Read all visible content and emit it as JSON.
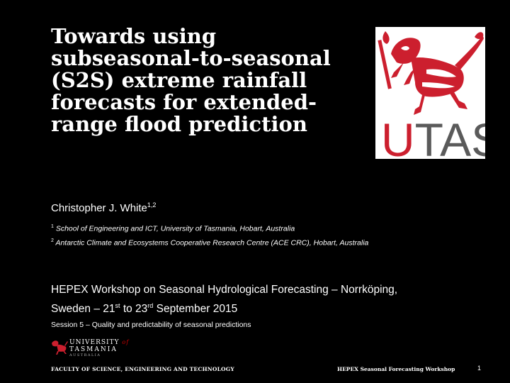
{
  "title_lines": [
    "Towards using",
    "subseasonal-to-seasonal",
    "(S2S) extreme rainfall",
    "forecasts for extended-",
    "range flood prediction"
  ],
  "logo": {
    "text": "UTAS",
    "u_color": "#cc1f2e",
    "tas_color": "#5a5a5a",
    "lion_color": "#cc1f2e"
  },
  "author": {
    "name": "Christopher J. White",
    "sup": "1,2"
  },
  "affiliations": [
    {
      "sup": "1",
      "text": "School of Engineering and ICT, University of Tasmania, Hobart, Australia"
    },
    {
      "sup": "2",
      "text": "Antarctic Climate and Ecosystems Cooperative Research Centre (ACE CRC), Hobart, Australia"
    }
  ],
  "workshop": {
    "line1": "HEPEX Workshop on Seasonal Hydrological Forecasting – Norrköping,",
    "line2_a": "Sweden – 21",
    "line2_sup1": "st",
    "line2_b": " to 23",
    "line2_sup2": "rd",
    "line2_c": " September 2015"
  },
  "session": "Session 5 – Quality and predictability of seasonal predictions",
  "small_logo": {
    "line1": "UNIVERSITY",
    "of": "of",
    "line2": "TASMANIA",
    "line3": "AUSTRALIA"
  },
  "footer": {
    "left": "FACULTY OF SCIENCE, ENGINEERING AND TECHNOLOGY",
    "right": "HEPEX Seasonal Forecasting Workshop",
    "page": "1"
  }
}
